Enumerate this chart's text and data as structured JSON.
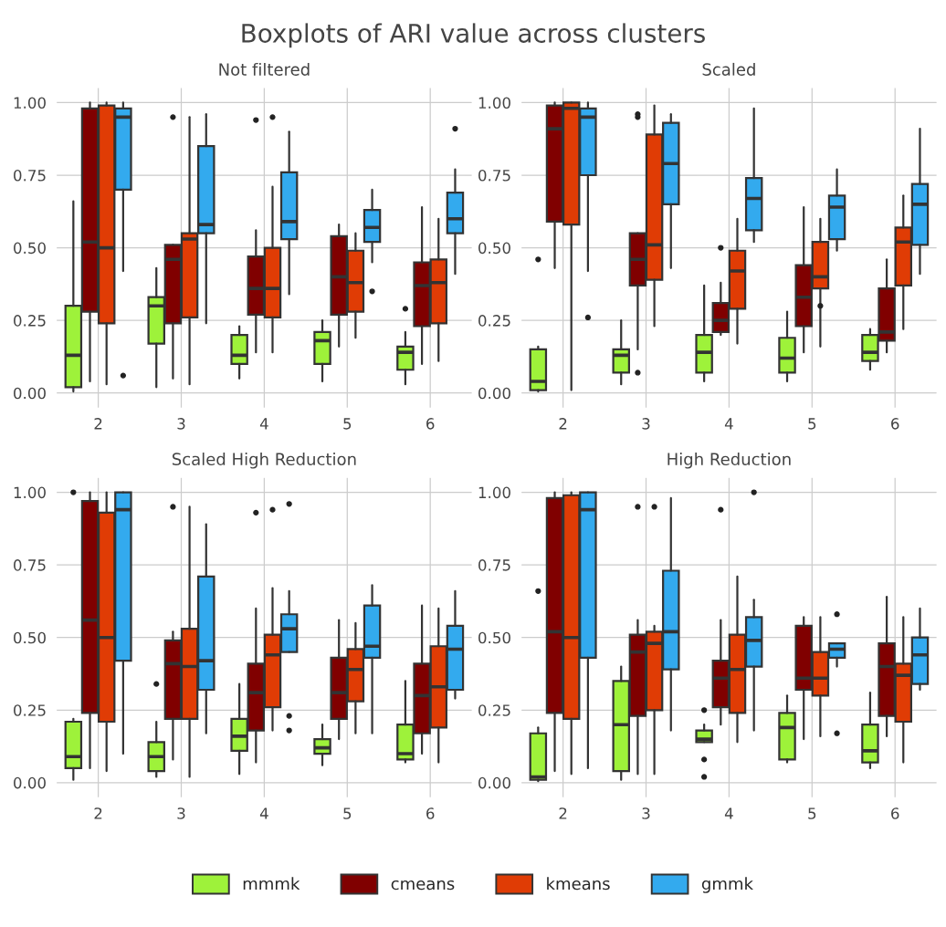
{
  "chart_data": [
    {
      "type": "box",
      "title": "Not filtered",
      "annotations": [
        "Boxplots of ARI value across clusters"
      ],
      "legend": "bottom",
      "grid": true,
      "categories": [
        "2",
        "3",
        "4",
        "5",
        "6"
      ],
      "ylim": [
        -0.05,
        1.05
      ],
      "yticks": [
        {
          "value": 0,
          "label": "0.00"
        },
        {
          "value": 0.25,
          "label": "0.25"
        },
        {
          "value": 0.5,
          "label": "0.50"
        },
        {
          "value": 0.75,
          "label": "0.75"
        },
        {
          "value": 1,
          "label": "1.00"
        }
      ],
      "series": [
        {
          "name": "mmmk",
          "color": "#9ef23a",
          "boxes": [
            {
              "low": 0.005,
              "q1": 0.02,
              "median": 0.13,
              "q3": 0.3,
              "high": 0.66
            },
            {
              "low": 0.02,
              "q1": 0.17,
              "median": 0.3,
              "q3": 0.33,
              "high": 0.43
            },
            {
              "low": 0.05,
              "q1": 0.1,
              "median": 0.13,
              "q3": 0.2,
              "high": 0.23
            },
            {
              "low": 0.04,
              "q1": 0.1,
              "median": 0.18,
              "q3": 0.21,
              "high": 0.25
            },
            {
              "low": 0.03,
              "q1": 0.08,
              "median": 0.14,
              "q3": 0.16,
              "high": 0.21,
              "outliers": [
                0.29
              ]
            }
          ]
        },
        {
          "name": "cmeans",
          "color": "#800000",
          "boxes": [
            {
              "low": 0.04,
              "q1": 0.28,
              "median": 0.52,
              "q3": 0.98,
              "high": 1.0
            },
            {
              "low": 0.05,
              "q1": 0.24,
              "median": 0.46,
              "q3": 0.51,
              "high": 0.51,
              "outliers": [
                0.95
              ]
            },
            {
              "low": 0.14,
              "q1": 0.27,
              "median": 0.36,
              "q3": 0.47,
              "high": 0.56,
              "outliers": [
                0.94
              ]
            },
            {
              "low": 0.16,
              "q1": 0.27,
              "median": 0.4,
              "q3": 0.54,
              "high": 0.58
            },
            {
              "low": 0.1,
              "q1": 0.23,
              "median": 0.37,
              "q3": 0.45,
              "high": 0.64
            }
          ]
        },
        {
          "name": "kmeans",
          "color": "#e03c05",
          "boxes": [
            {
              "low": 0.03,
              "q1": 0.24,
              "median": 0.5,
              "q3": 0.99,
              "high": 1.0
            },
            {
              "low": 0.03,
              "q1": 0.26,
              "median": 0.53,
              "q3": 0.55,
              "high": 0.95
            },
            {
              "low": 0.14,
              "q1": 0.26,
              "median": 0.36,
              "q3": 0.5,
              "high": 0.71,
              "outliers": [
                0.95
              ]
            },
            {
              "low": 0.19,
              "q1": 0.28,
              "median": 0.38,
              "q3": 0.49,
              "high": 0.55
            },
            {
              "low": 0.11,
              "q1": 0.24,
              "median": 0.38,
              "q3": 0.46,
              "high": 0.6
            }
          ]
        },
        {
          "name": "gmmk",
          "color": "#33aaee",
          "boxes": [
            {
              "low": 0.42,
              "q1": 0.7,
              "median": 0.95,
              "q3": 0.98,
              "high": 1.0,
              "outliers": [
                0.06
              ]
            },
            {
              "low": 0.24,
              "q1": 0.55,
              "median": 0.58,
              "q3": 0.85,
              "high": 0.96
            },
            {
              "low": 0.34,
              "q1": 0.53,
              "median": 0.59,
              "q3": 0.76,
              "high": 0.9
            },
            {
              "low": 0.45,
              "q1": 0.52,
              "median": 0.57,
              "q3": 0.63,
              "high": 0.7,
              "outliers": [
                0.35
              ]
            },
            {
              "low": 0.41,
              "q1": 0.55,
              "median": 0.6,
              "q3": 0.69,
              "high": 0.77,
              "outliers": [
                0.91
              ]
            }
          ]
        }
      ]
    },
    {
      "type": "box",
      "title": "Scaled",
      "grid": true,
      "categories": [
        "2",
        "3",
        "4",
        "5",
        "6"
      ],
      "ylim": [
        -0.05,
        1.05
      ],
      "yticks": [
        {
          "value": 0,
          "label": "0.00"
        },
        {
          "value": 0.25,
          "label": "0.25"
        },
        {
          "value": 0.5,
          "label": "0.50"
        },
        {
          "value": 0.75,
          "label": "0.75"
        },
        {
          "value": 1,
          "label": "1.00"
        }
      ],
      "series": [
        {
          "color": "#9ef23a",
          "boxes": [
            {
              "low": 0.005,
              "q1": 0.01,
              "median": 0.04,
              "q3": 0.15,
              "high": 0.16,
              "outliers": [
                0.46
              ]
            },
            {
              "low": 0.03,
              "q1": 0.07,
              "median": 0.13,
              "q3": 0.15,
              "high": 0.25
            },
            {
              "low": 0.04,
              "q1": 0.07,
              "median": 0.14,
              "q3": 0.2,
              "high": 0.37
            },
            {
              "low": 0.04,
              "q1": 0.07,
              "median": 0.12,
              "q3": 0.19,
              "high": 0.28
            },
            {
              "low": 0.08,
              "q1": 0.11,
              "median": 0.14,
              "q3": 0.2,
              "high": 0.22
            }
          ]
        },
        {
          "color": "#800000",
          "boxes": [
            {
              "low": 0.43,
              "q1": 0.59,
              "median": 0.91,
              "q3": 0.99,
              "high": 1.0
            },
            {
              "low": 0.15,
              "q1": 0.37,
              "median": 0.46,
              "q3": 0.55,
              "high": 0.55,
              "outliers": [
                0.95,
                0.96,
                0.07
              ]
            },
            {
              "low": 0.2,
              "q1": 0.21,
              "median": 0.25,
              "q3": 0.31,
              "high": 0.38,
              "outliers": [
                0.5
              ]
            },
            {
              "low": 0.14,
              "q1": 0.23,
              "median": 0.33,
              "q3": 0.44,
              "high": 0.64
            },
            {
              "low": 0.14,
              "q1": 0.18,
              "median": 0.21,
              "q3": 0.36,
              "high": 0.46
            }
          ]
        },
        {
          "color": "#e03c05",
          "boxes": [
            {
              "low": 0.01,
              "q1": 0.58,
              "median": 0.98,
              "q3": 1.0,
              "high": 1.0
            },
            {
              "low": 0.23,
              "q1": 0.39,
              "median": 0.51,
              "q3": 0.89,
              "high": 0.99
            },
            {
              "low": 0.17,
              "q1": 0.29,
              "median": 0.42,
              "q3": 0.49,
              "high": 0.6
            },
            {
              "low": 0.16,
              "q1": 0.36,
              "median": 0.4,
              "q3": 0.52,
              "high": 0.6,
              "outliers": [
                0.3
              ]
            },
            {
              "low": 0.22,
              "q1": 0.37,
              "median": 0.52,
              "q3": 0.57,
              "high": 0.68
            }
          ]
        },
        {
          "color": "#33aaee",
          "boxes": [
            {
              "low": 0.42,
              "q1": 0.75,
              "median": 0.95,
              "q3": 0.98,
              "high": 1.0,
              "outliers": [
                0.26
              ]
            },
            {
              "low": 0.43,
              "q1": 0.65,
              "median": 0.79,
              "q3": 0.93,
              "high": 0.96
            },
            {
              "low": 0.52,
              "q1": 0.56,
              "median": 0.67,
              "q3": 0.74,
              "high": 0.98
            },
            {
              "low": 0.49,
              "q1": 0.53,
              "median": 0.64,
              "q3": 0.68,
              "high": 0.77
            },
            {
              "low": 0.41,
              "q1": 0.51,
              "median": 0.65,
              "q3": 0.72,
              "high": 0.91
            }
          ]
        }
      ]
    },
    {
      "type": "box",
      "title": "Scaled High Reduction",
      "grid": true,
      "categories": [
        "2",
        "3",
        "4",
        "5",
        "6"
      ],
      "ylim": [
        -0.05,
        1.05
      ],
      "yticks": [
        {
          "value": 0,
          "label": "0.00"
        },
        {
          "value": 0.25,
          "label": "0.25"
        },
        {
          "value": 0.5,
          "label": "0.50"
        },
        {
          "value": 0.75,
          "label": "0.75"
        },
        {
          "value": 1,
          "label": "1.00"
        }
      ],
      "series": [
        {
          "color": "#9ef23a",
          "boxes": [
            {
              "low": 0.01,
              "q1": 0.05,
              "median": 0.09,
              "q3": 0.21,
              "high": 0.22,
              "outliers": [
                1.0
              ]
            },
            {
              "low": 0.02,
              "q1": 0.04,
              "median": 0.09,
              "q3": 0.14,
              "high": 0.21,
              "outliers": [
                0.34
              ]
            },
            {
              "low": 0.03,
              "q1": 0.11,
              "median": 0.16,
              "q3": 0.22,
              "high": 0.34
            },
            {
              "low": 0.06,
              "q1": 0.1,
              "median": 0.12,
              "q3": 0.15,
              "high": 0.2
            },
            {
              "low": 0.07,
              "q1": 0.08,
              "median": 0.1,
              "q3": 0.2,
              "high": 0.35
            }
          ]
        },
        {
          "color": "#800000",
          "boxes": [
            {
              "low": 0.05,
              "q1": 0.24,
              "median": 0.56,
              "q3": 0.97,
              "high": 1.0
            },
            {
              "low": 0.08,
              "q1": 0.22,
              "median": 0.41,
              "q3": 0.49,
              "high": 0.52,
              "outliers": [
                0.95
              ]
            },
            {
              "low": 0.07,
              "q1": 0.18,
              "median": 0.31,
              "q3": 0.41,
              "high": 0.6,
              "outliers": [
                0.93
              ]
            },
            {
              "low": 0.15,
              "q1": 0.22,
              "median": 0.31,
              "q3": 0.43,
              "high": 0.56
            },
            {
              "low": 0.1,
              "q1": 0.17,
              "median": 0.3,
              "q3": 0.41,
              "high": 0.61
            }
          ]
        },
        {
          "color": "#e03c05",
          "boxes": [
            {
              "low": 0.04,
              "q1": 0.21,
              "median": 0.5,
              "q3": 0.93,
              "high": 1.0
            },
            {
              "low": 0.02,
              "q1": 0.22,
              "median": 0.4,
              "q3": 0.53,
              "high": 0.95
            },
            {
              "low": 0.18,
              "q1": 0.26,
              "median": 0.44,
              "q3": 0.51,
              "high": 0.67,
              "outliers": [
                0.94
              ]
            },
            {
              "low": 0.17,
              "q1": 0.28,
              "median": 0.39,
              "q3": 0.46,
              "high": 0.55
            },
            {
              "low": 0.07,
              "q1": 0.19,
              "median": 0.33,
              "q3": 0.47,
              "high": 0.6
            }
          ]
        },
        {
          "color": "#33aaee",
          "boxes": [
            {
              "low": 0.1,
              "q1": 0.42,
              "median": 0.94,
              "q3": 1.0,
              "high": 1.0
            },
            {
              "low": 0.17,
              "q1": 0.32,
              "median": 0.42,
              "q3": 0.71,
              "high": 0.89
            },
            {
              "low": 0.45,
              "q1": 0.45,
              "median": 0.53,
              "q3": 0.58,
              "high": 0.66,
              "outliers": [
                0.96,
                0.23,
                0.18
              ]
            },
            {
              "low": 0.17,
              "q1": 0.43,
              "median": 0.47,
              "q3": 0.61,
              "high": 0.68
            },
            {
              "low": 0.29,
              "q1": 0.32,
              "median": 0.46,
              "q3": 0.54,
              "high": 0.66
            }
          ]
        }
      ]
    },
    {
      "type": "box",
      "title": "High Reduction",
      "grid": true,
      "categories": [
        "2",
        "3",
        "4",
        "5",
        "6"
      ],
      "ylim": [
        -0.05,
        1.05
      ],
      "yticks": [
        {
          "value": 0,
          "label": "0.00"
        },
        {
          "value": 0.25,
          "label": "0.25"
        },
        {
          "value": 0.5,
          "label": "0.50"
        },
        {
          "value": 0.75,
          "label": "0.75"
        },
        {
          "value": 1,
          "label": "1.00"
        }
      ],
      "series": [
        {
          "color": "#9ef23a",
          "boxes": [
            {
              "low": 0.005,
              "q1": 0.01,
              "median": 0.02,
              "q3": 0.17,
              "high": 0.19,
              "outliers": [
                0.66
              ]
            },
            {
              "low": 0.01,
              "q1": 0.04,
              "median": 0.2,
              "q3": 0.35,
              "high": 0.4
            },
            {
              "low": 0.14,
              "q1": 0.14,
              "median": 0.15,
              "q3": 0.18,
              "high": 0.2,
              "outliers": [
                0.25,
                0.08,
                0.02
              ]
            },
            {
              "low": 0.07,
              "q1": 0.08,
              "median": 0.19,
              "q3": 0.24,
              "high": 0.3
            },
            {
              "low": 0.05,
              "q1": 0.07,
              "median": 0.11,
              "q3": 0.2,
              "high": 0.31
            }
          ]
        },
        {
          "color": "#800000",
          "boxes": [
            {
              "low": 0.04,
              "q1": 0.24,
              "median": 0.52,
              "q3": 0.98,
              "high": 1.0
            },
            {
              "low": 0.03,
              "q1": 0.23,
              "median": 0.45,
              "q3": 0.51,
              "high": 0.56,
              "outliers": [
                0.95
              ]
            },
            {
              "low": 0.2,
              "q1": 0.26,
              "median": 0.36,
              "q3": 0.42,
              "high": 0.56,
              "outliers": [
                0.94
              ]
            },
            {
              "low": 0.15,
              "q1": 0.32,
              "median": 0.36,
              "q3": 0.54,
              "high": 0.57
            },
            {
              "low": 0.16,
              "q1": 0.23,
              "median": 0.4,
              "q3": 0.48,
              "high": 0.64
            }
          ]
        },
        {
          "color": "#e03c05",
          "boxes": [
            {
              "low": 0.03,
              "q1": 0.22,
              "median": 0.5,
              "q3": 0.99,
              "high": 1.0
            },
            {
              "low": 0.03,
              "q1": 0.25,
              "median": 0.48,
              "q3": 0.52,
              "high": 0.54,
              "outliers": [
                0.95
              ]
            },
            {
              "low": 0.14,
              "q1": 0.24,
              "median": 0.39,
              "q3": 0.51,
              "high": 0.71
            },
            {
              "low": 0.16,
              "q1": 0.3,
              "median": 0.36,
              "q3": 0.45,
              "high": 0.57
            },
            {
              "low": 0.07,
              "q1": 0.21,
              "median": 0.37,
              "q3": 0.41,
              "high": 0.57
            }
          ]
        },
        {
          "color": "#33aaee",
          "boxes": [
            {
              "low": 0.05,
              "q1": 0.43,
              "median": 0.94,
              "q3": 1.0,
              "high": 1.0
            },
            {
              "low": 0.18,
              "q1": 0.39,
              "median": 0.52,
              "q3": 0.73,
              "high": 0.98
            },
            {
              "low": 0.18,
              "q1": 0.4,
              "median": 0.49,
              "q3": 0.57,
              "high": 0.63,
              "outliers": [
                1.0
              ]
            },
            {
              "low": 0.4,
              "q1": 0.43,
              "median": 0.46,
              "q3": 0.48,
              "high": 0.48,
              "outliers": [
                0.58,
                0.17
              ]
            },
            {
              "low": 0.32,
              "q1": 0.34,
              "median": 0.44,
              "q3": 0.5,
              "high": 0.6
            }
          ]
        }
      ]
    }
  ]
}
